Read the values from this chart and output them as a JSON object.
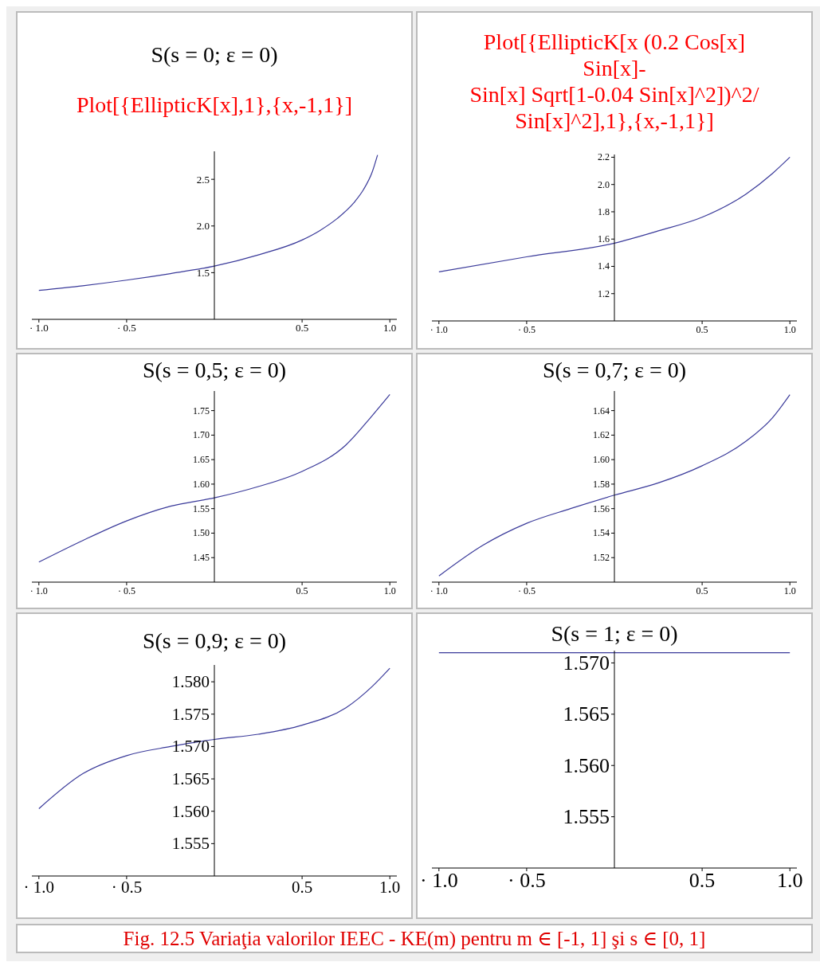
{
  "chart_data": [
    {
      "type": "line",
      "title": "S(s = 0; ε = 0)",
      "subtitle": "Plot[{EllipticK[x],1},{x,-1,1}]",
      "xlim": [
        -1.04,
        1.04
      ],
      "ylim": [
        1.0,
        2.8
      ],
      "xticks": [
        {
          "value": -1,
          "label": "· 1.0"
        },
        {
          "value": -0.5,
          "label": "· 0.5"
        },
        {
          "value": 0.5,
          "label": "0.5"
        },
        {
          "value": 1,
          "label": "1.0"
        }
      ],
      "yticks": [
        {
          "value": 1.5,
          "label": "1.5"
        },
        {
          "value": 2,
          "label": "2.0"
        },
        {
          "value": 2.5,
          "label": "2.5"
        }
      ],
      "series": [
        {
          "color": "#3a3a9a",
          "x": [
            -1,
            -0.75,
            -0.5,
            -0.25,
            0,
            0.25,
            0.5,
            0.6,
            0.7,
            0.8,
            0.85,
            0.9,
            0.93
          ],
          "values": [
            1.31,
            1.36,
            1.42,
            1.49,
            1.57,
            1.69,
            1.85,
            1.95,
            2.08,
            2.26,
            2.39,
            2.58,
            2.76
          ]
        }
      ]
    },
    {
      "type": "line",
      "subtitle": "Plot[{EllipticK[x (0.2 Cos[x]\nSin[x]-\nSin[x] Sqrt[1-0.04 Sin[x]^2])^2/\nSin[x]^2],1},{x,-1,1}]",
      "xlim": [
        -1.04,
        1.04
      ],
      "ylim": [
        1.0,
        2.22
      ],
      "xticks": [
        {
          "value": -1,
          "label": "· 1.0"
        },
        {
          "value": -0.5,
          "label": "· 0.5"
        },
        {
          "value": 0.5,
          "label": "0.5"
        },
        {
          "value": 1,
          "label": "1.0"
        }
      ],
      "yticks": [
        {
          "value": 1.2,
          "label": "1.2"
        },
        {
          "value": 1.4,
          "label": "1.4"
        },
        {
          "value": 1.6,
          "label": "1.6"
        },
        {
          "value": 1.8,
          "label": "1.8"
        },
        {
          "value": 2,
          "label": "2.0"
        },
        {
          "value": 2.2,
          "label": "2.2"
        }
      ],
      "series": [
        {
          "color": "#3a3a9a",
          "x": [
            -1,
            -0.5,
            0,
            0.25,
            0.5,
            0.75,
            0.9,
            1
          ],
          "values": [
            1.36,
            1.47,
            1.57,
            1.66,
            1.76,
            1.93,
            2.08,
            2.2
          ]
        }
      ]
    },
    {
      "type": "line",
      "title": "S(s = 0,5; ε = 0)",
      "xlim": [
        -1.04,
        1.04
      ],
      "ylim": [
        1.4,
        1.79
      ],
      "xticks": [
        {
          "value": -1,
          "label": "· 1.0"
        },
        {
          "value": -0.5,
          "label": "· 0.5"
        },
        {
          "value": 0.5,
          "label": "0.5"
        },
        {
          "value": 1,
          "label": "1.0"
        }
      ],
      "yticks": [
        {
          "value": 1.45,
          "label": "1.45"
        },
        {
          "value": 1.5,
          "label": "1.50"
        },
        {
          "value": 1.55,
          "label": "1.55"
        },
        {
          "value": 1.6,
          "label": "1.60"
        },
        {
          "value": 1.65,
          "label": "1.65"
        },
        {
          "value": 1.7,
          "label": "1.70"
        },
        {
          "value": 1.75,
          "label": "1.75"
        }
      ],
      "series": [
        {
          "color": "#3a3a9a",
          "x": [
            -1,
            -0.75,
            -0.5,
            -0.25,
            0,
            0.25,
            0.5,
            0.75,
            0.9,
            1
          ],
          "values": [
            1.441,
            1.485,
            1.525,
            1.555,
            1.572,
            1.595,
            1.626,
            1.68,
            1.74,
            1.783
          ]
        }
      ]
    },
    {
      "type": "line",
      "title": "S(s = 0,7; ε = 0)",
      "xlim": [
        -1.04,
        1.04
      ],
      "ylim": [
        1.5,
        1.656
      ],
      "xticks": [
        {
          "value": -1,
          "label": "· 1.0"
        },
        {
          "value": -0.5,
          "label": "· 0.5"
        },
        {
          "value": 0.5,
          "label": "0.5"
        },
        {
          "value": 1,
          "label": "1.0"
        }
      ],
      "yticks": [
        {
          "value": 1.52,
          "label": "1.52"
        },
        {
          "value": 1.54,
          "label": "1.54"
        },
        {
          "value": 1.56,
          "label": "1.56"
        },
        {
          "value": 1.58,
          "label": "1.58"
        },
        {
          "value": 1.6,
          "label": "1.60"
        },
        {
          "value": 1.62,
          "label": "1.62"
        },
        {
          "value": 1.64,
          "label": "1.64"
        }
      ],
      "series": [
        {
          "color": "#3a3a9a",
          "x": [
            -1,
            -0.75,
            -0.5,
            -0.25,
            0,
            0.25,
            0.5,
            0.75,
            0.9,
            1
          ],
          "values": [
            1.505,
            1.53,
            1.548,
            1.56,
            1.571,
            1.581,
            1.595,
            1.615,
            1.634,
            1.653
          ]
        }
      ]
    },
    {
      "type": "line",
      "title": "S(s = 0,9; ε = 0)",
      "xlim": [
        -1.04,
        1.04
      ],
      "ylim": [
        1.55,
        1.5826
      ],
      "xticks": [
        {
          "value": -1,
          "label": "· 1.0"
        },
        {
          "value": -0.5,
          "label": "· 0.5"
        },
        {
          "value": 0.5,
          "label": "0.5"
        },
        {
          "value": 1,
          "label": "1.0"
        }
      ],
      "yticks": [
        {
          "value": 1.555,
          "label": "1.555"
        },
        {
          "value": 1.56,
          "label": "1.560"
        },
        {
          "value": 1.565,
          "label": "1.565"
        },
        {
          "value": 1.57,
          "label": "1.570"
        },
        {
          "value": 1.575,
          "label": "1.575"
        },
        {
          "value": 1.58,
          "label": "1.580"
        }
      ],
      "series": [
        {
          "color": "#3a3a9a",
          "x": [
            -1,
            -0.75,
            -0.5,
            -0.25,
            0,
            0.25,
            0.5,
            0.75,
            0.9,
            1
          ],
          "values": [
            1.5604,
            1.5658,
            1.5686,
            1.57,
            1.5711,
            1.5719,
            1.5733,
            1.576,
            1.5793,
            1.5821
          ]
        }
      ]
    },
    {
      "type": "line",
      "title": "S(s = 1; ε = 0)",
      "xlim": [
        -1.04,
        1.04
      ],
      "ylim": [
        1.55,
        1.5712
      ],
      "xticks": [
        {
          "value": -1,
          "label": "· 1.0"
        },
        {
          "value": -0.5,
          "label": "· 0.5"
        },
        {
          "value": 0.5,
          "label": "0.5"
        },
        {
          "value": 1,
          "label": "1.0"
        }
      ],
      "yticks": [
        {
          "value": 1.555,
          "label": "1.555"
        },
        {
          "value": 1.56,
          "label": "1.560"
        },
        {
          "value": 1.565,
          "label": "1.565"
        },
        {
          "value": 1.57,
          "label": "1.570"
        }
      ],
      "series": [
        {
          "color": "#3a3a9a",
          "x": [
            -1,
            1
          ],
          "values": [
            1.571,
            1.571
          ]
        }
      ],
      "annotations": [
        "Fig. 12.5 Variaţia valorilor IEEC - KE(m) pentru  m ∈ [-1, 1] şi s ∈ [0, 1]"
      ]
    }
  ]
}
